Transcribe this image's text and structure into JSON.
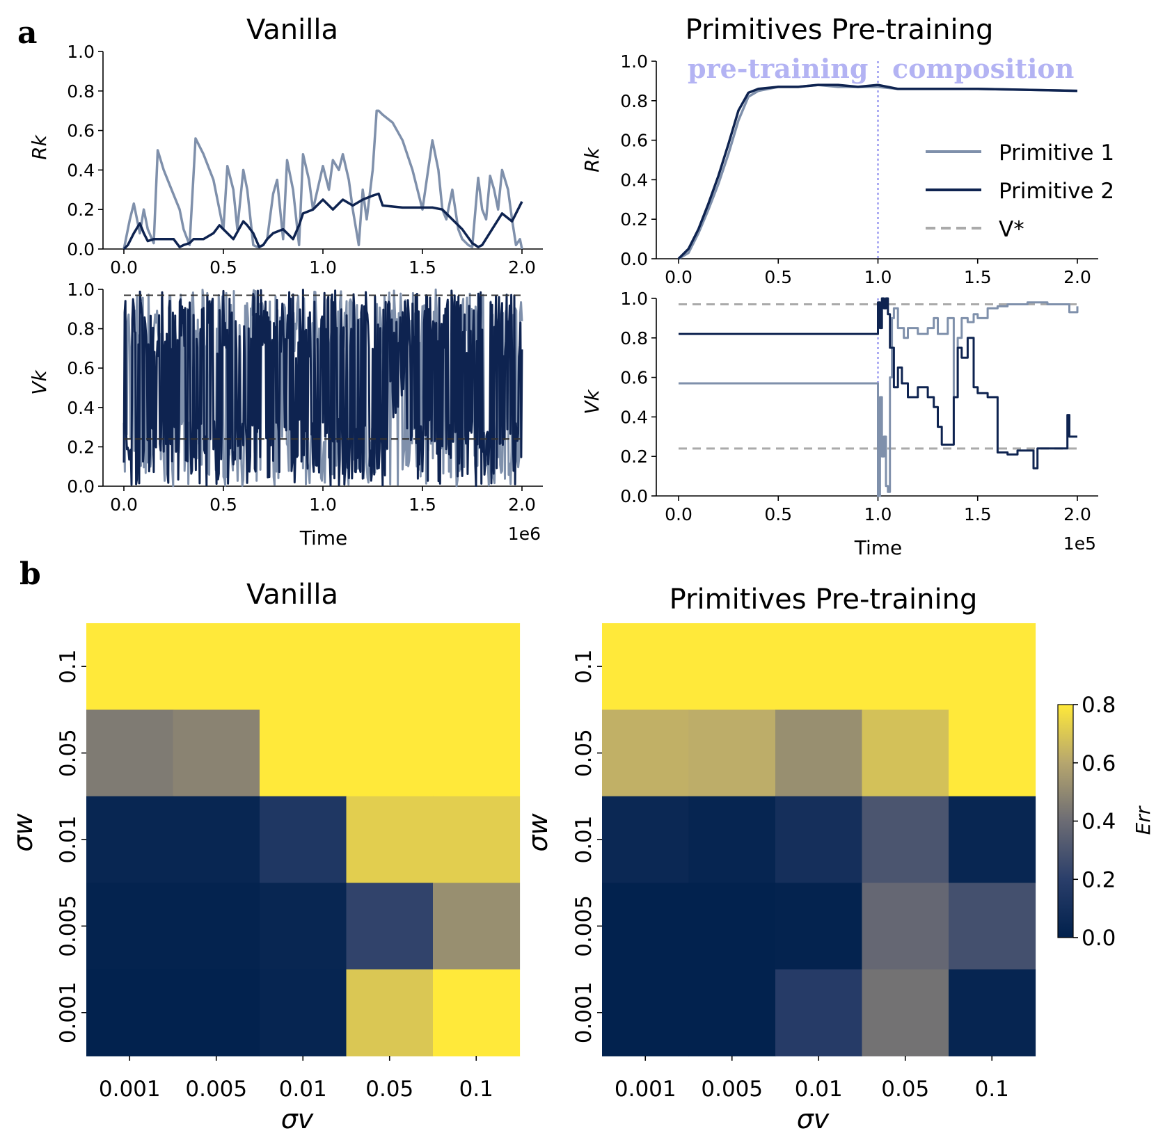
{
  "panel_labels": [
    "a",
    "b"
  ],
  "colors": {
    "primitive1": "#7f90ab",
    "primitive2": "#0e2350",
    "vstar": "#aaaaaa",
    "phase_text": "#b3b3f3",
    "phase_line": "#9b9bf0"
  },
  "chart_data": [
    {
      "id": "a-vanilla-R",
      "type": "line",
      "title": "Vanilla",
      "xlabel": "",
      "ylabel": "R_k",
      "ylabel_display": "Rk",
      "xlim": [
        -0.1,
        2.1
      ],
      "ylim": [
        0,
        1
      ],
      "xticks": [
        "0.0",
        "0.5",
        "1.0",
        "1.5",
        "2.0"
      ],
      "yticks": [
        "0.0",
        "0.2",
        "0.4",
        "0.6",
        "0.8",
        "1.0"
      ],
      "series": [
        {
          "name": "Primitive 1",
          "x": [
            0,
            0.03,
            0.05,
            0.08,
            0.1,
            0.12,
            0.15,
            0.17,
            0.2,
            0.24,
            0.28,
            0.3,
            0.33,
            0.36,
            0.4,
            0.45,
            0.5,
            0.52,
            0.55,
            0.57,
            0.6,
            0.62,
            0.65,
            0.67,
            0.7,
            0.72,
            0.75,
            0.77,
            0.8,
            0.82,
            0.85,
            0.88,
            0.9,
            0.93,
            0.95,
            1.0,
            1.03,
            1.05,
            1.08,
            1.1,
            1.13,
            1.15,
            1.18,
            1.2,
            1.22,
            1.25,
            1.27,
            1.28,
            1.3,
            1.35,
            1.4,
            1.45,
            1.5,
            1.55,
            1.58,
            1.6,
            1.62,
            1.65,
            1.68,
            1.7,
            1.73,
            1.75,
            1.78,
            1.8,
            1.82,
            1.84,
            1.86,
            1.88,
            1.9,
            1.93,
            1.95,
            1.97,
            1.99,
            2.0
          ],
          "values": [
            0,
            0.15,
            0.23,
            0.08,
            0.2,
            0.1,
            0.03,
            0.5,
            0.4,
            0.3,
            0.2,
            0.1,
            0.02,
            0.56,
            0.48,
            0.35,
            0.1,
            0.42,
            0.3,
            0.1,
            0.4,
            0.3,
            0.02,
            0.01,
            0.02,
            0.05,
            0.28,
            0.35,
            0.05,
            0.45,
            0.3,
            0.02,
            0.48,
            0.35,
            0.2,
            0.42,
            0.3,
            0.45,
            0.4,
            0.48,
            0.35,
            0.2,
            0.02,
            0.3,
            0.15,
            0.4,
            0.7,
            0.7,
            0.68,
            0.64,
            0.55,
            0.4,
            0.2,
            0.55,
            0.4,
            0.2,
            0.15,
            0.3,
            0.1,
            0.05,
            0.02,
            0.01,
            0.36,
            0.2,
            0.15,
            0.37,
            0.3,
            0.2,
            0.4,
            0.3,
            0.15,
            0.02,
            0.05,
            0.0
          ]
        },
        {
          "name": "Primitive 2",
          "x": [
            0,
            0.02,
            0.05,
            0.08,
            0.1,
            0.12,
            0.15,
            0.2,
            0.25,
            0.28,
            0.3,
            0.33,
            0.35,
            0.4,
            0.45,
            0.48,
            0.5,
            0.55,
            0.6,
            0.62,
            0.65,
            0.68,
            0.7,
            0.72,
            0.75,
            0.8,
            0.85,
            0.88,
            0.9,
            0.95,
            1.0,
            1.03,
            1.05,
            1.1,
            1.15,
            1.2,
            1.25,
            1.28,
            1.3,
            1.4,
            1.5,
            1.55,
            1.6,
            1.7,
            1.75,
            1.78,
            1.8,
            1.85,
            1.9,
            1.95,
            2.0
          ],
          "values": [
            0,
            0.02,
            0.08,
            0.13,
            0.08,
            0.04,
            0.05,
            0.05,
            0.05,
            0.01,
            0.02,
            0.03,
            0.05,
            0.05,
            0.08,
            0.12,
            0.1,
            0.05,
            0.14,
            0.12,
            0.08,
            0.01,
            0.02,
            0.05,
            0.08,
            0.1,
            0.05,
            0.12,
            0.18,
            0.2,
            0.25,
            0.22,
            0.2,
            0.25,
            0.22,
            0.25,
            0.27,
            0.28,
            0.22,
            0.21,
            0.21,
            0.21,
            0.2,
            0.1,
            0.03,
            0.01,
            0.02,
            0.1,
            0.18,
            0.14,
            0.24
          ]
        }
      ]
    },
    {
      "id": "a-vanilla-V",
      "type": "line",
      "title": "",
      "xlabel": "Time",
      "ylabel": "V_k",
      "ylabel_display": "Vk",
      "x_scale_note": "1e6",
      "xlim": [
        -0.1,
        2.1
      ],
      "ylim": [
        0,
        1
      ],
      "xticks": [
        "0.0",
        "0.5",
        "1.0",
        "1.5",
        "2.0"
      ],
      "yticks": [
        "0.0",
        "0.2",
        "0.4",
        "0.6",
        "0.8",
        "1.0"
      ],
      "noise_regime": "rapid oscillation between 0 and 1 for both primitives over the full time range",
      "reference_lines": [
        0.97,
        0.24
      ]
    },
    {
      "id": "a-pretrain-R",
      "type": "line",
      "title": "Primitives Pre-training",
      "xlabel": "",
      "ylabel": "R_k",
      "ylabel_display": "Rk",
      "xlim": [
        -0.1,
        2.1
      ],
      "ylim": [
        0,
        1
      ],
      "xticks": [
        "0.0",
        "0.5",
        "1.0",
        "1.5",
        "2.0"
      ],
      "yticks": [
        "0.0",
        "0.2",
        "0.4",
        "0.6",
        "0.8",
        "1.0"
      ],
      "phase_labels": [
        "pre-training",
        "composition"
      ],
      "phase_boundary": 1.0,
      "legend": [
        "Primitive 1",
        "Primitive 2",
        "V*"
      ],
      "legend_position": "center-right",
      "series": [
        {
          "name": "Primitive 1",
          "x": [
            0,
            0.05,
            0.1,
            0.15,
            0.2,
            0.25,
            0.3,
            0.35,
            0.4,
            0.5,
            0.6,
            0.7,
            0.8,
            0.9,
            1.0,
            1.1,
            1.2,
            1.5,
            2.0
          ],
          "values": [
            0,
            0.03,
            0.13,
            0.25,
            0.38,
            0.53,
            0.7,
            0.82,
            0.85,
            0.87,
            0.87,
            0.88,
            0.87,
            0.87,
            0.87,
            0.86,
            0.86,
            0.86,
            0.85
          ]
        },
        {
          "name": "Primitive 2",
          "x": [
            0,
            0.05,
            0.1,
            0.15,
            0.2,
            0.25,
            0.3,
            0.35,
            0.4,
            0.5,
            0.6,
            0.7,
            0.8,
            0.9,
            1.0,
            1.1,
            1.2,
            1.5,
            2.0
          ],
          "values": [
            0,
            0.05,
            0.15,
            0.28,
            0.42,
            0.58,
            0.75,
            0.84,
            0.86,
            0.87,
            0.87,
            0.88,
            0.88,
            0.87,
            0.88,
            0.86,
            0.86,
            0.86,
            0.85
          ]
        }
      ]
    },
    {
      "id": "a-pretrain-V",
      "type": "line",
      "title": "",
      "xlabel": "Time",
      "ylabel": "V_k",
      "ylabel_display": "Vk",
      "x_scale_note": "1e5",
      "xlim": [
        -0.1,
        2.1
      ],
      "ylim": [
        0,
        1
      ],
      "xticks": [
        "0.0",
        "0.5",
        "1.0",
        "1.5",
        "2.0"
      ],
      "yticks": [
        "0.0",
        "0.2",
        "0.4",
        "0.6",
        "0.8",
        "1.0"
      ],
      "reference_lines": [
        0.97,
        0.24
      ],
      "phase_boundary": 1.0,
      "series": [
        {
          "name": "Primitive 1",
          "x": [
            0,
            1.0,
            1.0,
            1.01,
            1.02,
            1.03,
            1.04,
            1.05,
            1.06,
            1.07,
            1.08,
            1.1,
            1.13,
            1.15,
            1.2,
            1.25,
            1.28,
            1.3,
            1.35,
            1.38,
            1.4,
            1.42,
            1.45,
            1.48,
            1.5,
            1.55,
            1.6,
            1.65,
            1.7,
            1.75,
            1.8,
            1.85,
            1.9,
            1.95,
            1.96,
            2.0
          ],
          "values": [
            0.57,
            0.57,
            0.0,
            0.5,
            0.2,
            0.3,
            0.05,
            0.02,
            0.6,
            0.9,
            0.95,
            0.85,
            0.8,
            0.85,
            0.82,
            0.85,
            0.9,
            0.82,
            0.9,
            0.5,
            0.8,
            0.9,
            0.88,
            0.92,
            0.9,
            0.95,
            0.96,
            0.97,
            0.97,
            0.98,
            0.98,
            0.97,
            0.97,
            0.97,
            0.93,
            0.96
          ]
        },
        {
          "name": "Primitive 2",
          "x": [
            0,
            1.0,
            1.0,
            1.01,
            1.02,
            1.03,
            1.04,
            1.05,
            1.06,
            1.08,
            1.1,
            1.12,
            1.15,
            1.2,
            1.25,
            1.28,
            1.3,
            1.32,
            1.35,
            1.38,
            1.4,
            1.42,
            1.45,
            1.48,
            1.5,
            1.55,
            1.6,
            1.65,
            1.7,
            1.75,
            1.78,
            1.8,
            1.85,
            1.9,
            1.95,
            1.96,
            2.0
          ],
          "values": [
            0.82,
            0.82,
            0.98,
            0.85,
            1.0,
            0.95,
            1.0,
            0.92,
            0.75,
            0.55,
            0.65,
            0.57,
            0.5,
            0.55,
            0.5,
            0.45,
            0.35,
            0.26,
            0.26,
            0.5,
            0.75,
            0.7,
            0.8,
            0.55,
            0.52,
            0.5,
            0.22,
            0.21,
            0.23,
            0.23,
            0.14,
            0.24,
            0.24,
            0.24,
            0.41,
            0.3,
            0.3
          ]
        }
      ]
    },
    {
      "id": "b-vanilla",
      "type": "heatmap",
      "title": "Vanilla",
      "xlabel": "σv",
      "ylabel": "σw",
      "x_categories": [
        "0.001",
        "0.005",
        "0.01",
        "0.05",
        "0.1"
      ],
      "y_categories": [
        "0.1",
        "0.05",
        "0.01",
        "0.005",
        "0.001"
      ],
      "values": [
        [
          0.8,
          0.8,
          0.8,
          0.8,
          0.8
        ],
        [
          0.45,
          0.48,
          0.8,
          0.8,
          0.8
        ],
        [
          0.04,
          0.04,
          0.15,
          0.72,
          0.72
        ],
        [
          0.02,
          0.02,
          0.04,
          0.22,
          0.52
        ],
        [
          0.01,
          0.01,
          0.03,
          0.7,
          0.8
        ]
      ],
      "colorbar": {
        "label": "Err",
        "range": [
          0,
          0.8
        ],
        "ticks": [
          "0.0",
          "0.2",
          "0.4",
          "0.6",
          "0.8"
        ]
      }
    },
    {
      "id": "b-pretrain",
      "type": "heatmap",
      "title": "Primitives Pre-training",
      "xlabel": "σv",
      "ylabel": "σw",
      "x_categories": [
        "0.001",
        "0.005",
        "0.01",
        "0.05",
        "0.1"
      ],
      "y_categories": [
        "0.1",
        "0.05",
        "0.01",
        "0.005",
        "0.001"
      ],
      "values": [
        [
          0.8,
          0.8,
          0.8,
          0.8,
          0.8
        ],
        [
          0.63,
          0.62,
          0.52,
          0.68,
          0.8
        ],
        [
          0.05,
          0.03,
          0.1,
          0.3,
          0.04
        ],
        [
          0.01,
          0.01,
          0.02,
          0.38,
          0.28
        ],
        [
          0.01,
          0.01,
          0.18,
          0.42,
          0.03
        ]
      ],
      "colorbar": {
        "label": "Err",
        "range": [
          0,
          0.8
        ],
        "ticks": [
          "0.0",
          "0.2",
          "0.4",
          "0.6",
          "0.8"
        ]
      }
    }
  ]
}
